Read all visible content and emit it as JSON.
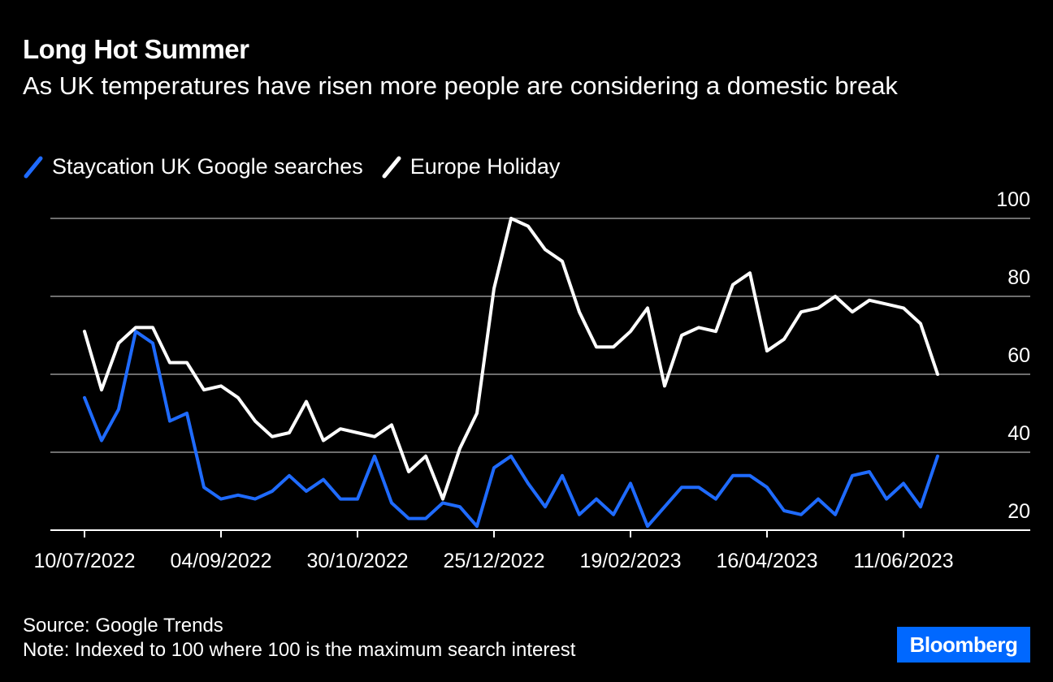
{
  "chart_data": {
    "type": "line",
    "title": "Long Hot Summer",
    "subtitle": "As UK temperatures have risen more people are considering a domestic break",
    "xlabel": "",
    "ylabel": "",
    "ylim": [
      20,
      100
    ],
    "yticks": [
      20,
      40,
      60,
      80,
      100
    ],
    "ytick_labels": [
      "20",
      "40",
      "60",
      "80",
      "100"
    ],
    "grid": true,
    "legend_position": "top-left",
    "xtick_labels": [
      "10/07/2022",
      "04/09/2022",
      "30/10/2022",
      "25/12/2022",
      "19/02/2023",
      "16/04/2023",
      "11/06/2023"
    ],
    "xtick_indices": [
      0,
      8,
      16,
      24,
      32,
      40,
      48
    ],
    "x_count": 51,
    "series": [
      {
        "name": "Staycation UK Google searches",
        "color": "#1f6bff",
        "values": [
          54,
          43,
          51,
          71,
          68,
          48,
          50,
          31,
          28,
          29,
          28,
          30,
          34,
          30,
          33,
          28,
          28,
          39,
          27,
          23,
          23,
          27,
          26,
          21,
          36,
          39,
          32,
          26,
          34,
          24,
          28,
          24,
          32,
          21,
          26,
          31,
          31,
          28,
          34,
          34,
          31,
          25,
          24,
          28,
          24,
          34,
          35,
          28,
          32,
          26,
          39
        ]
      },
      {
        "name": "Europe Holiday",
        "color": "#ffffff",
        "values": [
          71,
          56,
          68,
          72,
          72,
          63,
          63,
          56,
          57,
          54,
          48,
          44,
          45,
          53,
          43,
          46,
          45,
          44,
          47,
          35,
          39,
          28,
          41,
          50,
          82,
          100,
          98,
          92,
          89,
          76,
          67,
          67,
          71,
          77,
          57,
          70,
          72,
          71,
          83,
          86,
          66,
          69,
          76,
          77,
          80,
          76,
          79,
          78,
          77,
          73,
          60
        ]
      }
    ]
  },
  "footer": {
    "source": "Source: Google Trends",
    "note": "Note: Indexed to 100 where 100 is the maximum search interest"
  },
  "brand": {
    "name": "Bloomberg",
    "color": "#0068ff"
  }
}
